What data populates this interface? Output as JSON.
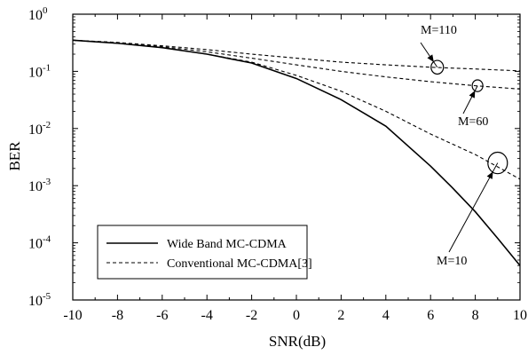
{
  "chart_data": {
    "type": "line",
    "xlabel": "SNR(dB)",
    "ylabel": "BER",
    "xlim": [
      -10,
      10
    ],
    "ylim": [
      1e-05,
      1
    ],
    "y_scale": "log",
    "x_ticks": [
      "-10",
      "-8",
      "-6",
      "-4",
      "-2",
      "0",
      "2",
      "4",
      "6",
      "8",
      "10"
    ],
    "y_ticks": [
      {
        "base": "10",
        "exp": "0"
      },
      {
        "base": "10",
        "exp": "-1"
      },
      {
        "base": "10",
        "exp": "-2"
      },
      {
        "base": "10",
        "exp": "-3"
      },
      {
        "base": "10",
        "exp": "-4"
      },
      {
        "base": "10",
        "exp": "-5"
      }
    ],
    "grid": false,
    "legend_position": "bottom-left",
    "series": [
      {
        "name": "Wide Band MC-CDMA",
        "style": "solid",
        "x": [
          -10,
          -8,
          -6,
          -4,
          -2,
          0,
          2,
          4,
          6,
          7,
          8,
          9,
          10
        ],
        "y": [
          0.35,
          0.31,
          0.26,
          0.2,
          0.14,
          0.075,
          0.032,
          0.011,
          0.0022,
          0.0009,
          0.00035,
          0.00012,
          4e-05
        ]
      },
      {
        "name": "Conventional MC-CDMA[3]",
        "style": "dashed",
        "curves": [
          {
            "label": "M=110",
            "x": [
              -10,
              -8,
              -6,
              -4,
              -2,
              0,
              2,
              4,
              6,
              8,
              10
            ],
            "y": [
              0.35,
              0.32,
              0.28,
              0.24,
              0.2,
              0.17,
              0.145,
              0.13,
              0.118,
              0.11,
              0.102
            ]
          },
          {
            "label": "M=60",
            "x": [
              -10,
              -8,
              -6,
              -4,
              -2,
              0,
              2,
              4,
              6,
              8,
              10
            ],
            "y": [
              0.35,
              0.32,
              0.27,
              0.22,
              0.17,
              0.13,
              0.1,
              0.08,
              0.066,
              0.056,
              0.049
            ]
          },
          {
            "label": "M=10",
            "x": [
              -10,
              -8,
              -6,
              -4,
              -2,
              0,
              2,
              4,
              6,
              8,
              10
            ],
            "y": [
              0.35,
              0.31,
              0.26,
              0.2,
              0.145,
              0.085,
              0.045,
              0.02,
              0.008,
              0.0035,
              0.0013
            ]
          }
        ]
      }
    ],
    "annotations": [
      {
        "text": "M=110",
        "circle_x": 6.3,
        "circle_y": 0.118
      },
      {
        "text": "M=60",
        "circle_x": 8.1,
        "circle_y": 0.056
      },
      {
        "text": "M=10",
        "circle_x": 9.0,
        "circle_y": 0.0025
      }
    ]
  }
}
